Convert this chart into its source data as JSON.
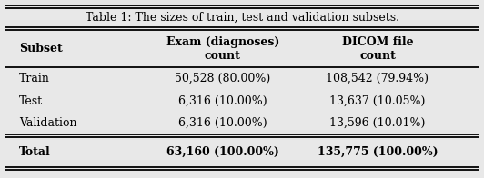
{
  "title": "Table 1: The sizes of train, test and validation subsets.",
  "col_headers": [
    "Subset",
    "Exam (diagnoses)\ncount",
    "DICOM file\ncount"
  ],
  "rows": [
    [
      "Train",
      "50,528 (80.00%)",
      "108,542 (79.94%)"
    ],
    [
      "Test",
      "6,316 (10.00%)",
      "13,637 (10.05%)"
    ],
    [
      "Validation",
      "6,316 (10.00%)",
      "13,596 (10.01%)"
    ],
    [
      "Total",
      "63,160 (100.00%)",
      "135,775 (100.00%)"
    ]
  ],
  "bold_rows": [
    3
  ],
  "bg_color": "#e8e8e8",
  "title_fontsize": 9.0,
  "data_fontsize": 9.0
}
